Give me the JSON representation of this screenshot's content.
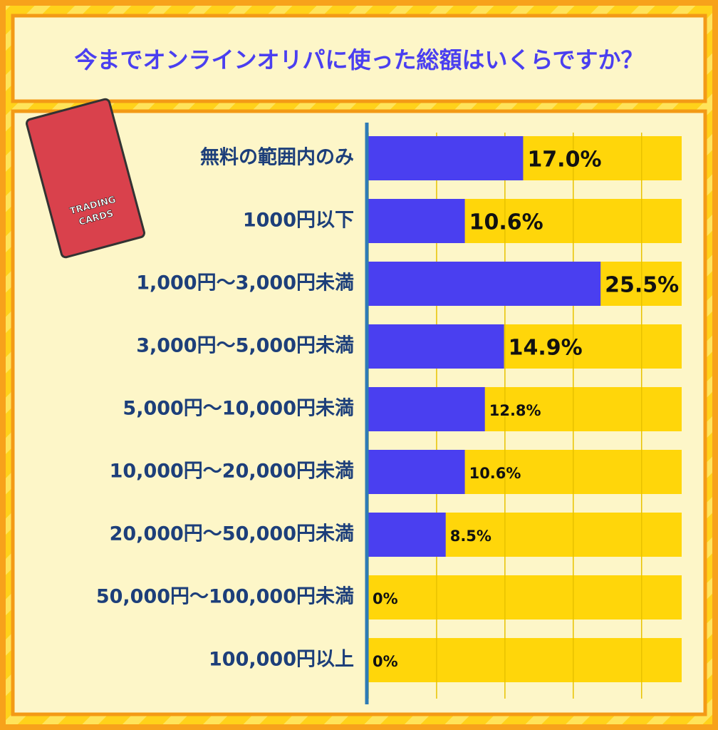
{
  "chart_data": {
    "type": "bar",
    "orientation": "horizontal",
    "title": "今までオンラインオリパに使った総額はいくらですか？",
    "categories": [
      "無料の範囲内のみ",
      "1000円以下",
      "1,000円～3,000円未満",
      "3,000円～5,000円未満",
      "5,000円～10,000円未満",
      "10,000円～20,000円未満",
      "20,000円～50,000円未満",
      "50,000円～100,000円未満",
      "100,000円以上"
    ],
    "values": [
      17.0,
      10.6,
      25.5,
      14.9,
      12.8,
      10.6,
      8.5,
      0,
      0
    ],
    "value_labels": [
      "17.0%",
      "10.6%",
      "25.5%",
      "14.9%",
      "12.8%",
      "10.6%",
      "8.5%",
      "0%",
      "0%"
    ],
    "color": "#4a3ff0",
    "xlim": [
      0,
      34.4
    ],
    "xticks": [
      0,
      7.5,
      15,
      22.5,
      30
    ],
    "grid": true
  }
}
